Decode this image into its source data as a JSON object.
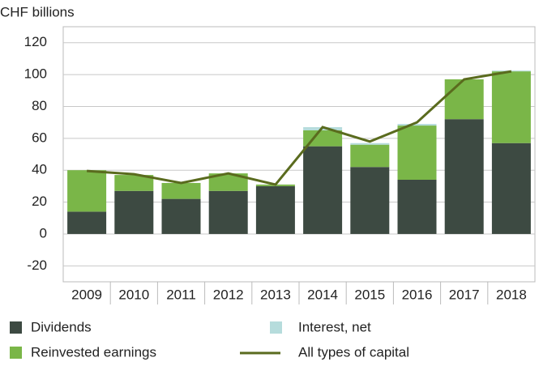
{
  "chart_data": {
    "type": "bar",
    "stacked": true,
    "y_axis_label": "CHF billions",
    "categories": [
      "2009",
      "2010",
      "2011",
      "2012",
      "2013",
      "2014",
      "2015",
      "2016",
      "2017",
      "2018"
    ],
    "series": [
      {
        "name": "Dividends",
        "color": "#3d4a42",
        "values": [
          14,
          27,
          22,
          27,
          30,
          55,
          42,
          34,
          72,
          57
        ]
      },
      {
        "name": "Reinvested earnings",
        "color": "#7ab648",
        "values": [
          26,
          10,
          10,
          11,
          1,
          10,
          14,
          34,
          25,
          45
        ]
      },
      {
        "name": "Interest, net",
        "color": "#b6dcdc",
        "values": [
          0,
          0,
          0,
          0,
          0,
          2,
          1,
          1,
          0,
          0.5
        ]
      },
      {
        "name": "All types of capital",
        "color": "#5a6b1e",
        "type": "line",
        "values": [
          39.5,
          37.5,
          32,
          38,
          31,
          67,
          58,
          70,
          97,
          102
        ]
      }
    ],
    "ylim": [
      -30,
      130
    ],
    "yticks": [
      -20,
      0,
      20,
      40,
      60,
      80,
      100,
      120
    ],
    "grid": true
  }
}
